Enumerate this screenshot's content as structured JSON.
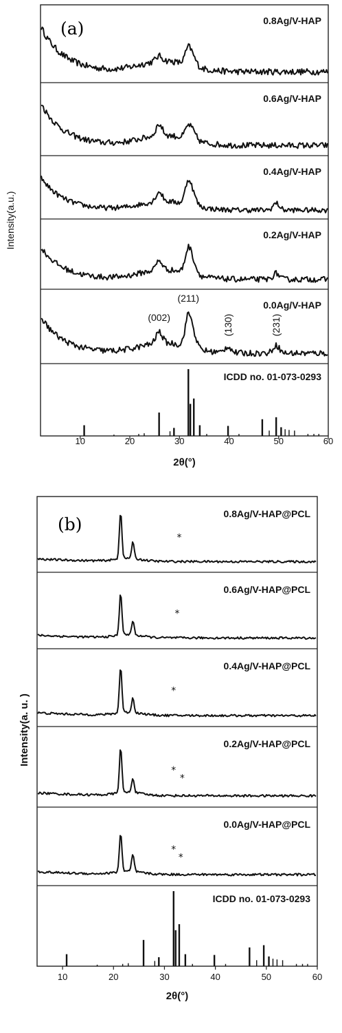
{
  "chart_data": [
    {
      "type": "line",
      "panel": "(a)",
      "xlabel": "2θ(°)",
      "ylabel": "Intensity(a.u.)",
      "xlim": [
        2,
        60
      ],
      "x_ticks": [
        10,
        20,
        30,
        40,
        50,
        60
      ],
      "series": [
        {
          "name": "0.8Ag/V-HAP",
          "peaks": [
            [
              25.9,
              0.15
            ],
            [
              31.8,
              0.5
            ],
            [
              32.9,
              0.2
            ]
          ],
          "baseline_high": 0.95
        },
        {
          "name": "0.6Ag/V-HAP",
          "peaks": [
            [
              25.9,
              0.35
            ],
            [
              31.8,
              0.4
            ],
            [
              32.9,
              0.2
            ]
          ],
          "baseline_high": 0.95
        },
        {
          "name": "0.4Ag/V-HAP",
          "peaks": [
            [
              25.9,
              0.35
            ],
            [
              31.8,
              0.85
            ],
            [
              32.9,
              0.3
            ],
            [
              49.5,
              0.25
            ]
          ],
          "baseline_high": 0.85
        },
        {
          "name": "0.2Ag/V-HAP",
          "peaks": [
            [
              25.9,
              0.3
            ],
            [
              31.8,
              0.8
            ],
            [
              32.9,
              0.3
            ],
            [
              49.5,
              0.2
            ]
          ],
          "baseline_high": 0.75
        },
        {
          "name": "0.0Ag/V-HAP",
          "peaks": [
            [
              25.9,
              0.35
            ],
            [
              31.8,
              0.95
            ],
            [
              32.9,
              0.35
            ],
            [
              39.8,
              0.2
            ],
            [
              49.5,
              0.25
            ]
          ],
          "baseline_high": 0.8
        }
      ],
      "peak_annotations": [
        {
          "label": "(002)",
          "x": 25.9
        },
        {
          "label": "(211)",
          "x": 31.8
        },
        {
          "label": "(130)",
          "x": 39.8
        },
        {
          "label": "(231)",
          "x": 49.5
        }
      ],
      "reference": {
        "name": "ICDD no. 01-073-0293",
        "x": [
          10.8,
          16.8,
          21.8,
          22.9,
          25.9,
          28.1,
          28.9,
          31.8,
          32.2,
          32.9,
          34.1,
          35.5,
          39.8,
          42.0,
          46.7,
          48.1,
          49.5,
          50.5,
          51.3,
          52.1,
          53.2,
          55.9,
          57.1,
          58.1
        ],
        "intensity": [
          0.16,
          0.02,
          0.03,
          0.04,
          0.35,
          0.07,
          0.12,
          1.0,
          0.48,
          0.56,
          0.16,
          0.03,
          0.15,
          0.03,
          0.25,
          0.08,
          0.28,
          0.13,
          0.1,
          0.09,
          0.08,
          0.03,
          0.03,
          0.03
        ]
      }
    },
    {
      "type": "line",
      "panel": "(b)",
      "xlabel": "2θ(°)",
      "ylabel": "Intensity(a. u. )",
      "xlim": [
        5,
        60
      ],
      "x_ticks": [
        10,
        20,
        30,
        40,
        50,
        60
      ],
      "series": [
        {
          "name": "0.8Ag/V-HAP@PCL",
          "peaks": [
            [
              21.4,
              1.0
            ],
            [
              23.8,
              0.35
            ]
          ]
        },
        {
          "name": "0.6Ag/V-HAP@PCL",
          "peaks": [
            [
              21.4,
              0.9
            ],
            [
              23.8,
              0.3
            ]
          ]
        },
        {
          "name": "0.4Ag/V-HAP@PCL",
          "peaks": [
            [
              21.4,
              0.95
            ],
            [
              23.8,
              0.3
            ]
          ]
        },
        {
          "name": "0.2Ag/V-HAP@PCL",
          "peaks": [
            [
              21.4,
              0.9
            ],
            [
              23.8,
              0.3
            ]
          ]
        },
        {
          "name": "0.0Ag/V-HAP@PCL",
          "peaks": [
            [
              21.4,
              0.8
            ],
            [
              23.8,
              0.35
            ]
          ]
        }
      ],
      "marker_symbol": "*",
      "star_markers": [
        {
          "panel": 0,
          "x": [
            32.9
          ]
        },
        {
          "panel": 1,
          "x": [
            32.5
          ]
        },
        {
          "panel": 2,
          "x": [
            31.8
          ]
        },
        {
          "panel": 3,
          "x": [
            31.8,
            33.5
          ]
        },
        {
          "panel": 4,
          "x": [
            31.8,
            33.2
          ]
        }
      ],
      "reference": {
        "name": "ICDD no. 01-073-0293",
        "x": [
          10.8,
          16.8,
          21.8,
          22.9,
          25.9,
          28.1,
          28.9,
          31.8,
          32.2,
          32.9,
          34.1,
          35.5,
          39.8,
          42.0,
          46.7,
          48.1,
          49.5,
          50.5,
          51.3,
          52.1,
          53.2,
          55.9,
          57.1,
          58.1
        ],
        "intensity": [
          0.16,
          0.02,
          0.03,
          0.04,
          0.35,
          0.07,
          0.12,
          1.0,
          0.48,
          0.56,
          0.16,
          0.03,
          0.15,
          0.03,
          0.25,
          0.08,
          0.28,
          0.13,
          0.1,
          0.09,
          0.08,
          0.03,
          0.03,
          0.03
        ]
      }
    }
  ]
}
